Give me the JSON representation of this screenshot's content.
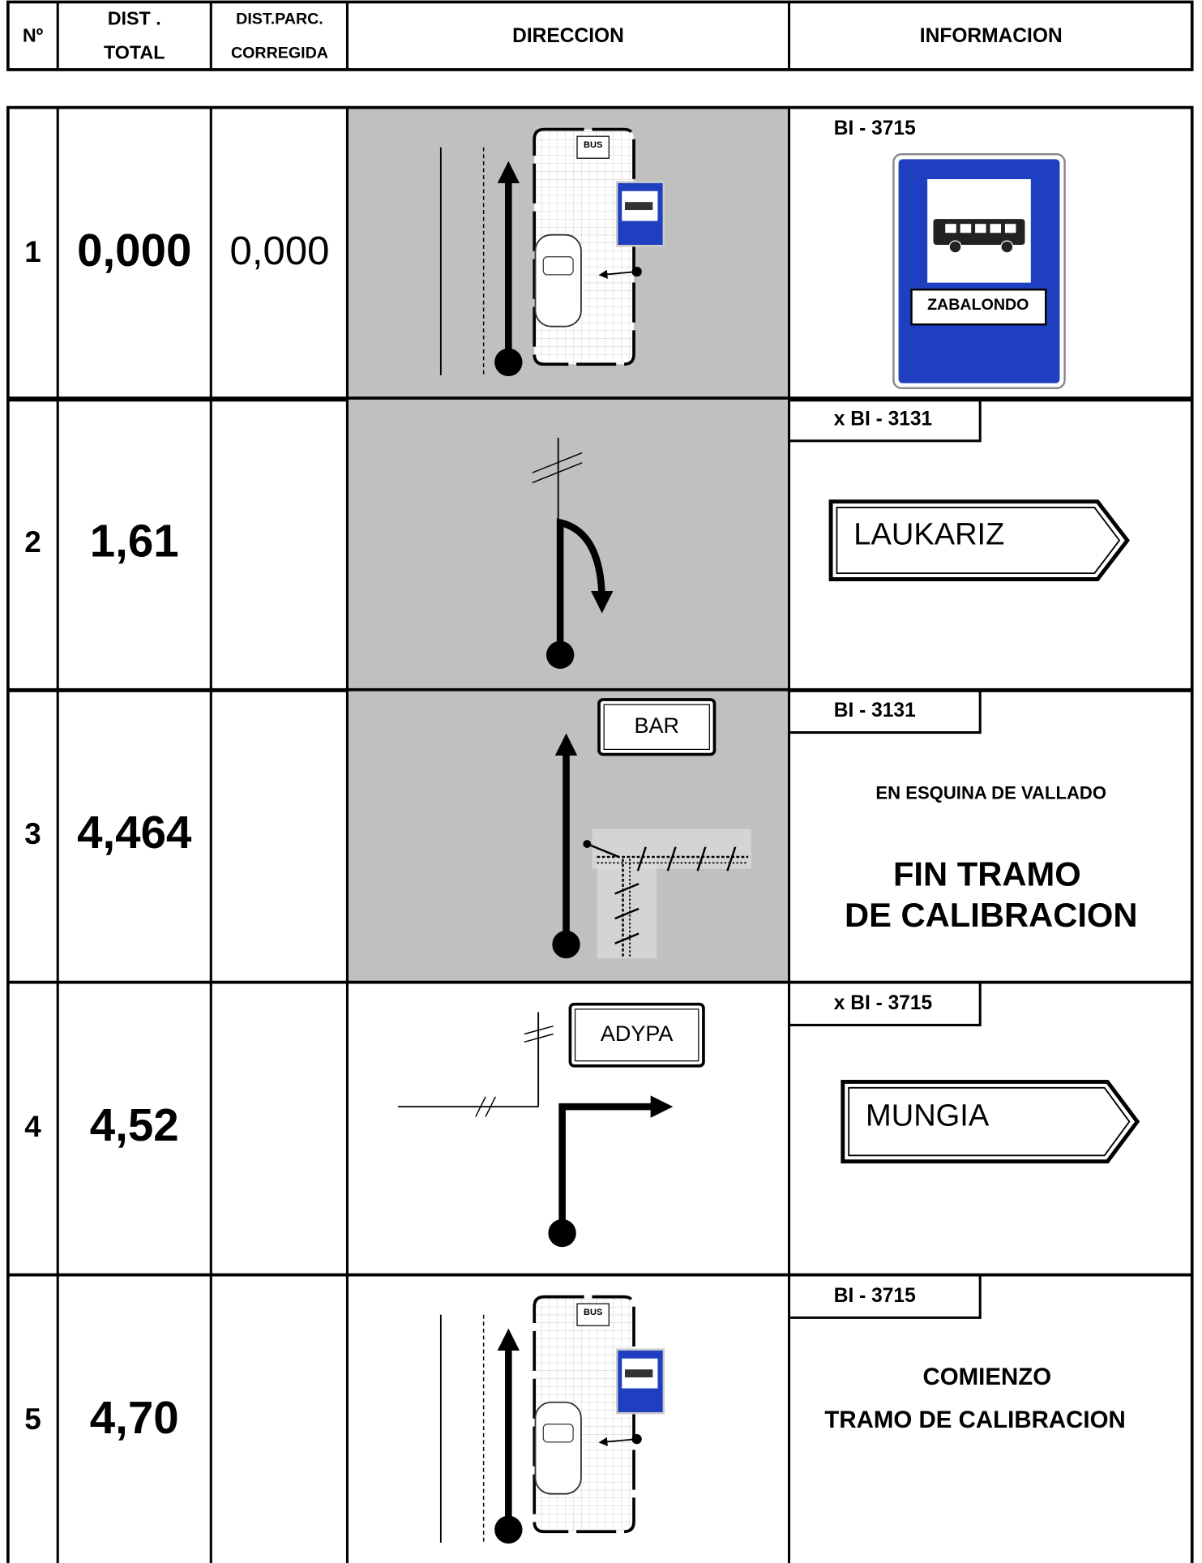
{
  "header": {
    "number": "Nº",
    "dist_total": [
      "DIST .",
      "TOTAL"
    ],
    "dist_parc": [
      "DIST.PARC.",
      "CORREGIDA"
    ],
    "direction": "DIRECCION",
    "information": "INFORMACION"
  },
  "rows": [
    {
      "number": "1",
      "dist_total": "0,000",
      "dist_parc": "0,000",
      "direction_sign": "BUS",
      "road": "BI - 3715",
      "info": [
        "ZABALONDO"
      ]
    },
    {
      "number": "2",
      "dist_total": "1,61",
      "road": "x BI - 3131",
      "info": [
        "LAUKARIZ"
      ]
    },
    {
      "number": "3",
      "dist_total": "4,464",
      "direction_sign": "BAR",
      "road": "BI - 3131",
      "info": [
        "EN ESQUINA DE VALLADO",
        "FIN TRAMO",
        "DE CALIBRACION"
      ]
    },
    {
      "number": "4",
      "dist_total": "4,52",
      "direction_sign": "ADYPA",
      "road": "x BI - 3715",
      "info": [
        "MUNGIA"
      ]
    },
    {
      "number": "5",
      "dist_total": "4,70",
      "direction_sign": "BUS",
      "road": "BI - 3715",
      "info": [
        "COMIENZO",
        "TRAMO DE CALIBRACION"
      ]
    }
  ]
}
